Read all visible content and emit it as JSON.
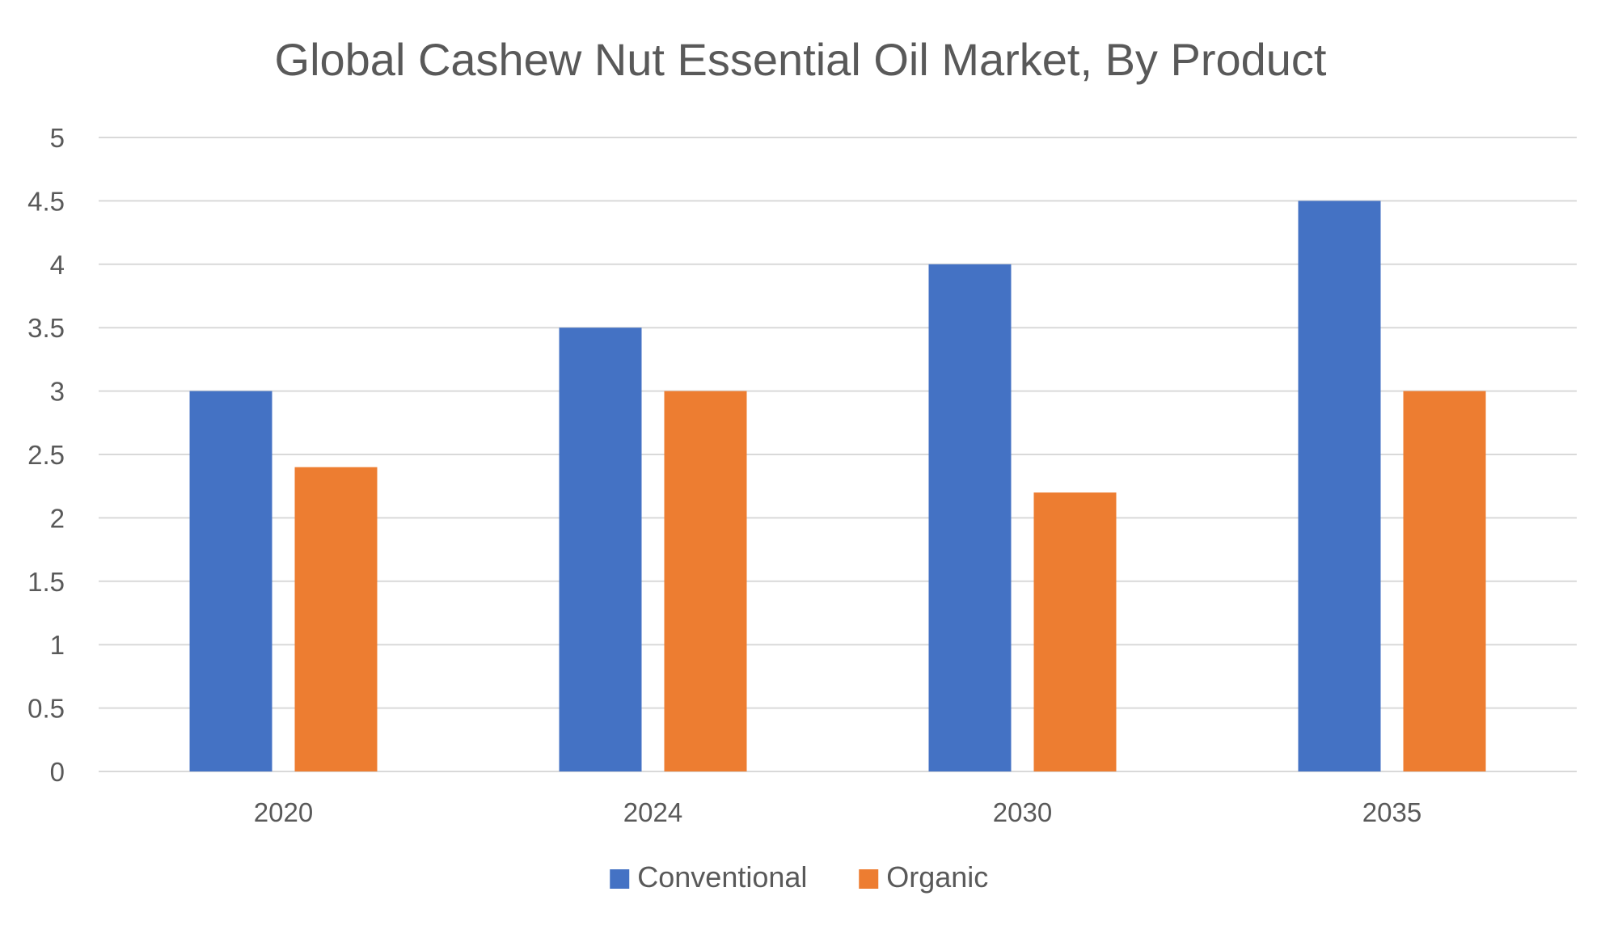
{
  "chart_data": {
    "type": "bar",
    "title": "Global Cashew Nut Essential Oil Market, By Product",
    "xlabel": "",
    "ylabel": "",
    "categories": [
      "2020",
      "2024",
      "2030",
      "2035"
    ],
    "series": [
      {
        "name": "Conventional",
        "values": [
          3,
          3.5,
          4,
          4.5
        ],
        "color": "#4472C4"
      },
      {
        "name": "Organic",
        "values": [
          2.4,
          3,
          2.2,
          3
        ],
        "color": "#ED7D31"
      }
    ],
    "ylim": [
      0,
      5
    ],
    "yticks": [
      "0",
      "0.5",
      "1",
      "1.5",
      "2",
      "2.5",
      "3",
      "3.5",
      "4",
      "4.5",
      "5"
    ],
    "grid": true,
    "gridline_color": "#D9D9D9",
    "legend_position": "bottom"
  }
}
